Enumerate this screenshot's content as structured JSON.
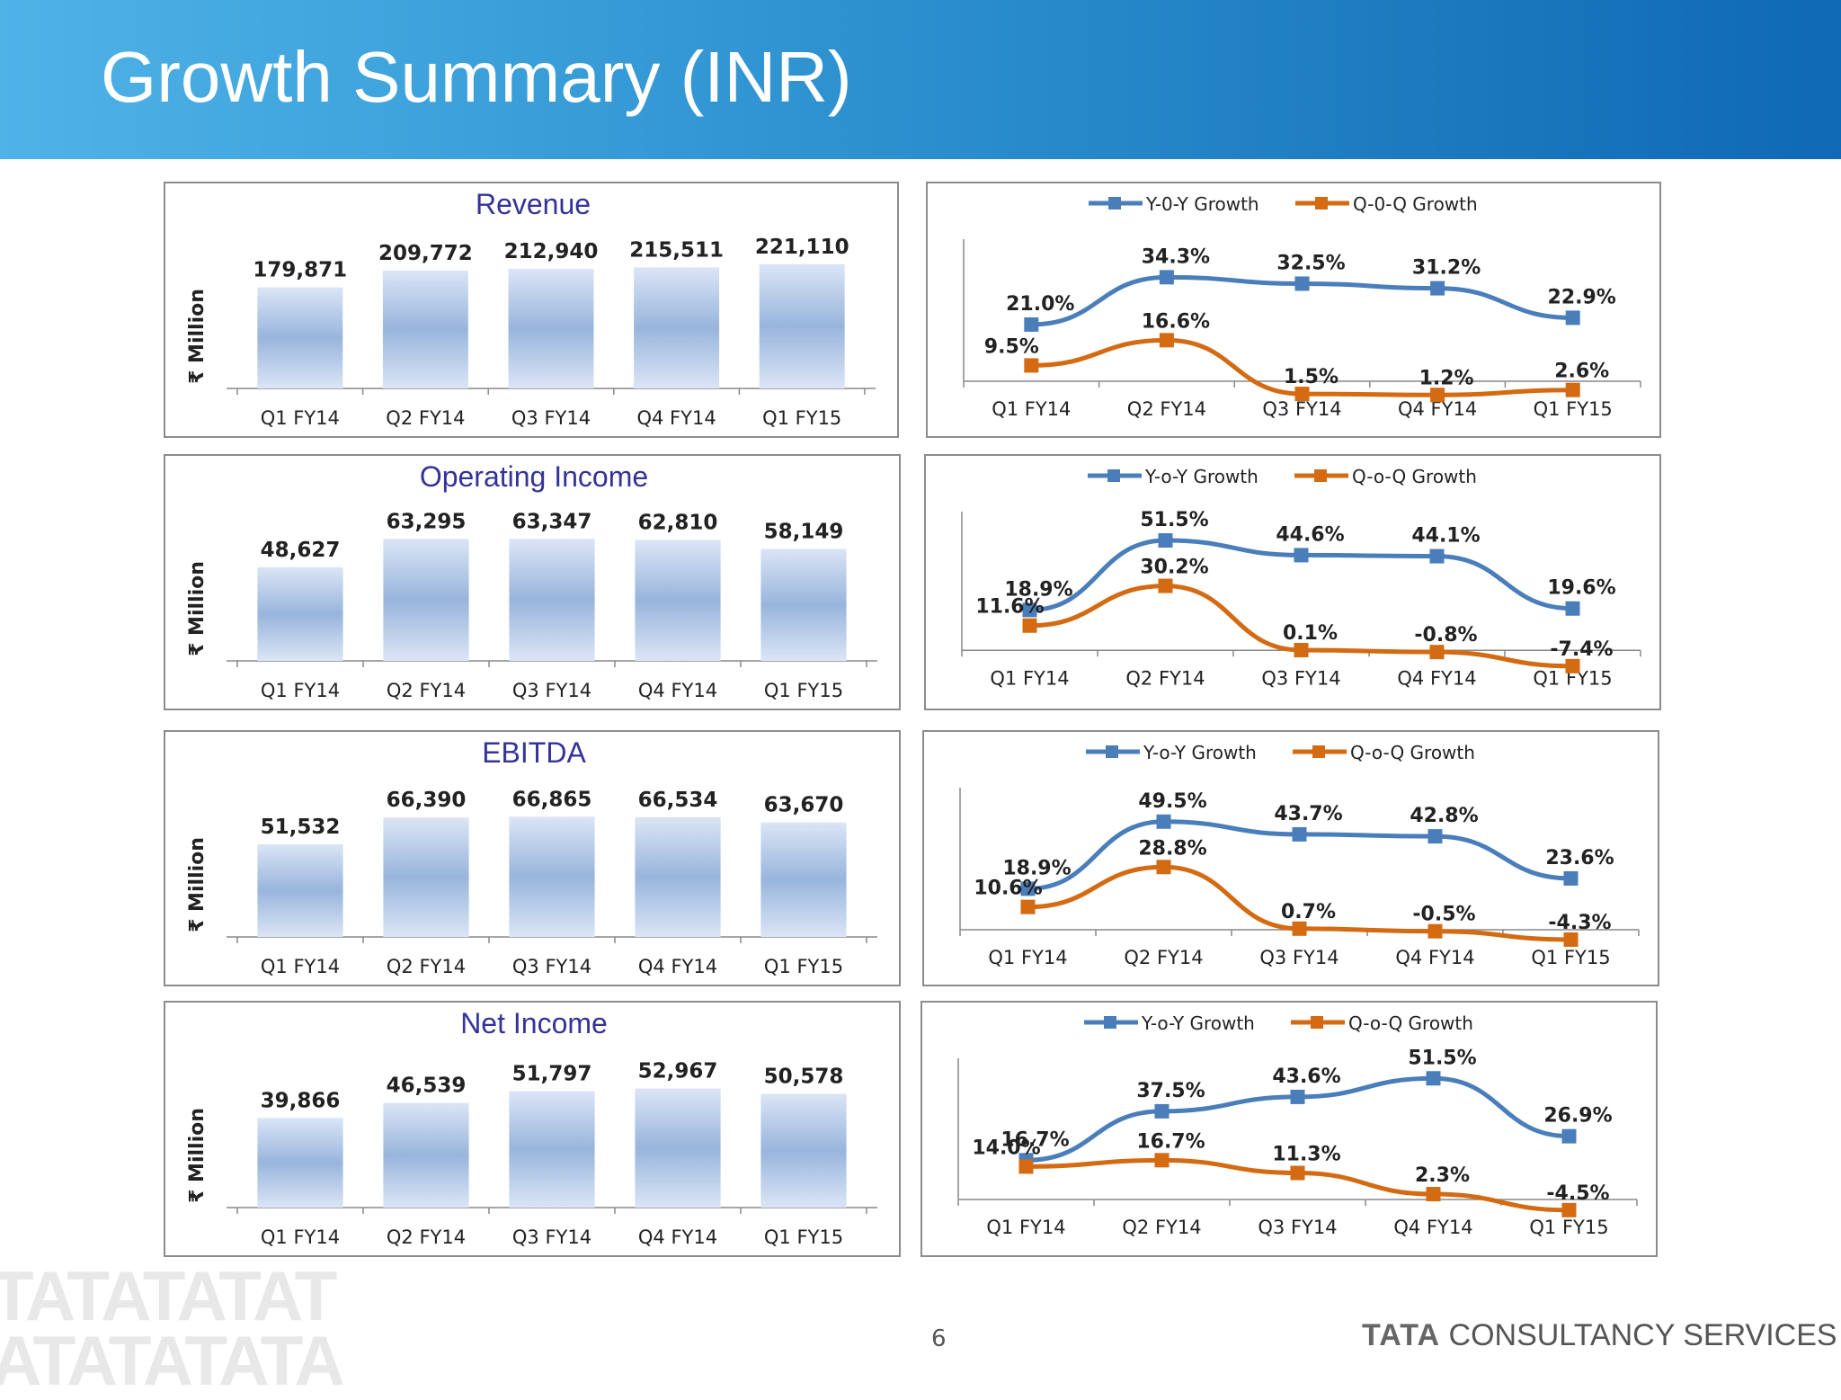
{
  "header": {
    "title": "Growth Summary (INR)"
  },
  "footer": {
    "page_number": "6",
    "brand_bold": "TATA",
    "brand_rest": " CONSULTANCY SERVICES",
    "watermark": "TATATATAT\nATATATATA"
  },
  "colors": {
    "yoy": "#4a7ebb",
    "qoq": "#d46a11",
    "bar_light": "#dbe5f6",
    "bar_dark": "#98b5dc",
    "title_text": "#333399"
  },
  "chart_data": [
    {
      "id": "revenue-bar",
      "type": "bar",
      "title": "Revenue",
      "ylabel": "₹ Million",
      "categories": [
        "Q1 FY14",
        "Q2 FY14",
        "Q3 FY14",
        "Q4 FY14",
        "Q1 FY15"
      ],
      "values": [
        179871,
        209772,
        212940,
        215511,
        221110
      ],
      "labels": [
        "179,871",
        "209,772",
        "212,940",
        "215,511",
        "221,110"
      ],
      "ylim": [
        0,
        240000
      ]
    },
    {
      "id": "revenue-growth",
      "type": "line",
      "categories": [
        "Q1 FY14",
        "Q2 FY14",
        "Q3 FY14",
        "Q4 FY14",
        "Q1 FY15"
      ],
      "series": [
        {
          "name": "Y-0-Y Growth",
          "values": [
            21.0,
            34.3,
            32.5,
            31.2,
            22.9
          ],
          "labels": [
            "21.0%",
            "34.3%",
            "32.5%",
            "31.2%",
            "22.9%"
          ]
        },
        {
          "name": "Q-0-Q Growth",
          "values": [
            9.5,
            16.6,
            1.5,
            1.2,
            2.6
          ],
          "labels": [
            "9.5%",
            "16.6%",
            "1.5%",
            "1.2%",
            "2.6%"
          ]
        }
      ],
      "ylim": [
        0,
        45
      ],
      "legend": "top-center"
    },
    {
      "id": "opincome-bar",
      "type": "bar",
      "title": "Operating Income",
      "ylabel": "₹ Million",
      "categories": [
        "Q1 FY14",
        "Q2 FY14",
        "Q3 FY14",
        "Q4 FY14",
        "Q1 FY15"
      ],
      "values": [
        48627,
        63295,
        63347,
        62810,
        58149
      ],
      "labels": [
        "48,627",
        "63,295",
        "63,347",
        "62,810",
        "58,149"
      ],
      "ylim": [
        0,
        70000
      ]
    },
    {
      "id": "opincome-growth",
      "type": "line",
      "categories": [
        "Q1 FY14",
        "Q2 FY14",
        "Q3 FY14",
        "Q4 FY14",
        "Q1 FY15"
      ],
      "series": [
        {
          "name": "Y-o-Y Growth",
          "values": [
            18.9,
            51.5,
            44.6,
            44.1,
            19.6
          ],
          "labels": [
            "18.9%",
            "51.5%",
            "44.6%",
            "44.1%",
            "19.6%"
          ]
        },
        {
          "name": "Q-o-Q Growth",
          "values": [
            11.6,
            30.2,
            0.1,
            -0.8,
            -7.4
          ],
          "labels": [
            "11.6%",
            "30.2%",
            "0.1%",
            "-0.8%",
            "-7.4%"
          ]
        }
      ],
      "ylim": [
        -10,
        65
      ],
      "legend": "top-center"
    },
    {
      "id": "ebitda-bar",
      "type": "bar",
      "title": "EBITDA",
      "ylabel": "₹ Million",
      "categories": [
        "Q1 FY14",
        "Q2 FY14",
        "Q3 FY14",
        "Q4 FY14",
        "Q1 FY15"
      ],
      "values": [
        51532,
        66390,
        66865,
        66534,
        63670
      ],
      "labels": [
        "51,532",
        "66,390",
        "66,865",
        "66,534",
        "63,670"
      ],
      "ylim": [
        0,
        75000
      ]
    },
    {
      "id": "ebitda-growth",
      "type": "line",
      "categories": [
        "Q1 FY14",
        "Q2 FY14",
        "Q3 FY14",
        "Q4 FY14",
        "Q1 FY15"
      ],
      "series": [
        {
          "name": "Y-o-Y  Growth",
          "values": [
            18.9,
            49.5,
            43.7,
            42.8,
            23.6
          ],
          "labels": [
            "18.9%",
            "49.5%",
            "43.7%",
            "42.8%",
            "23.6%"
          ]
        },
        {
          "name": "Q-o-Q  Growth",
          "values": [
            10.6,
            28.8,
            0.7,
            -0.5,
            -4.3
          ],
          "labels": [
            "10.6%",
            "28.8%",
            "0.7%",
            "-0.5%",
            "-4.3%"
          ]
        }
      ],
      "ylim": [
        -8,
        65
      ],
      "legend": "top-center"
    },
    {
      "id": "netincome-bar",
      "type": "bar",
      "title": "Net Income",
      "ylabel": "₹ Million",
      "categories": [
        "Q1 FY14",
        "Q2 FY14",
        "Q3 FY14",
        "Q4 FY14",
        "Q1 FY15"
      ],
      "values": [
        39866,
        46539,
        51797,
        52967,
        50578
      ],
      "labels": [
        "39,866",
        "46,539",
        "51,797",
        "52,967",
        "50,578"
      ],
      "ylim": [
        0,
        60000
      ]
    },
    {
      "id": "netincome-growth",
      "type": "line",
      "categories": [
        "Q1 FY14",
        "Q2 FY14",
        "Q3 FY14",
        "Q4 FY14",
        "Q1 FY15"
      ],
      "series": [
        {
          "name": "Y-o-Y  Growth",
          "values": [
            16.7,
            37.5,
            43.6,
            51.5,
            26.9
          ],
          "labels": [
            "16.7%",
            "37.5%",
            "43.6%",
            "51.5%",
            "26.9%"
          ]
        },
        {
          "name": "Q-o-Q  Growth",
          "values": [
            14.0,
            16.7,
            11.3,
            2.3,
            -4.5
          ],
          "labels": [
            "14.0%",
            "16.7%",
            "11.3%",
            "2.3%",
            "-4.5%"
          ]
        }
      ],
      "ylim": [
        -8,
        60
      ],
      "legend": "top-center"
    }
  ]
}
